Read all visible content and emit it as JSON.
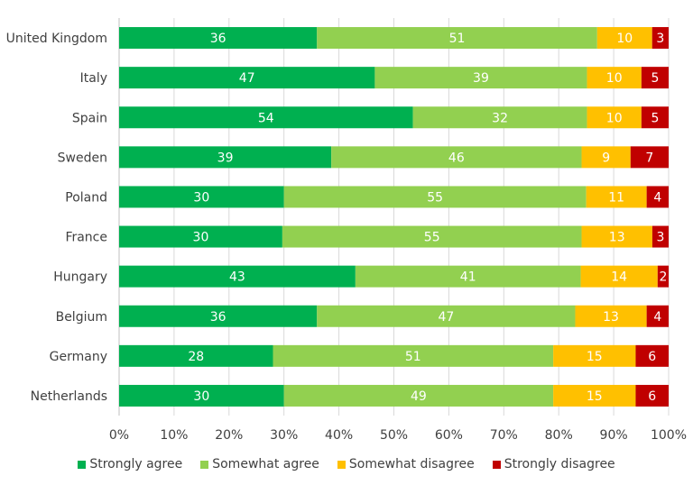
{
  "chart_data": {
    "type": "bar",
    "orientation": "horizontal",
    "stacked": true,
    "categories": [
      "United Kingdom",
      "Italy",
      "Spain",
      "Sweden",
      "Poland",
      "France",
      "Hungary",
      "Belgium",
      "Germany",
      "Netherlands"
    ],
    "series": [
      {
        "name": "Strongly agree",
        "color": "#00b050",
        "label_color": "#ffffff",
        "values": [
          36,
          47,
          54,
          39,
          30,
          30,
          43,
          36,
          28,
          30
        ]
      },
      {
        "name": "Somewhat agree",
        "color": "#92d050",
        "label_color": "#ffffff",
        "values": [
          51,
          39,
          32,
          46,
          55,
          55,
          41,
          47,
          51,
          49
        ]
      },
      {
        "name": "Somewhat disagree",
        "color": "#ffc000",
        "label_color": "#ffffff",
        "values": [
          10,
          10,
          10,
          9,
          11,
          13,
          14,
          13,
          15,
          15
        ]
      },
      {
        "name": "Strongly disagree",
        "color": "#c00000",
        "label_color": "#ffffff",
        "values": [
          3,
          5,
          5,
          7,
          4,
          3,
          2,
          4,
          6,
          6
        ]
      }
    ],
    "xlim": [
      0,
      100
    ],
    "x_ticks": [
      "0%",
      "10%",
      "20%",
      "30%",
      "40%",
      "50%",
      "60%",
      "70%",
      "80%",
      "90%",
      "100%"
    ],
    "xlabel": "",
    "ylabel": "",
    "title": "",
    "grid": true,
    "legend_position": "bottom"
  }
}
